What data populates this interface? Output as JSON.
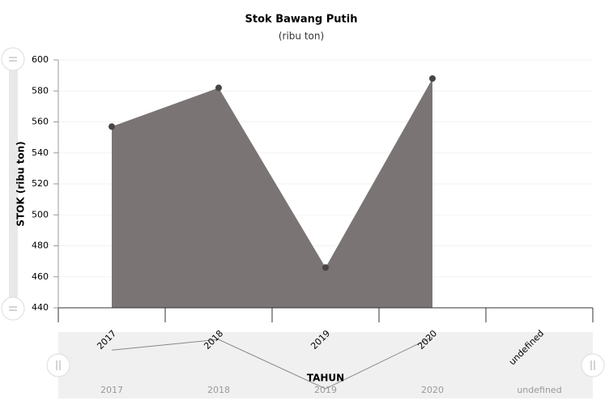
{
  "chart_data": {
    "type": "area",
    "title": "Stok Bawang Putih",
    "subtitle": "(ribu ton)",
    "x_label": "TAHUN",
    "y_label": "STOK (ribu ton)",
    "categories": [
      "2017",
      "2018",
      "2019",
      "2020",
      "undefined"
    ],
    "values": [
      557,
      582,
      466,
      588,
      null
    ],
    "color": "#7a7574",
    "ylim": [
      440,
      600
    ],
    "yticks": [
      440,
      460,
      480,
      500,
      520,
      540,
      560,
      580,
      600
    ],
    "grid": true
  }
}
